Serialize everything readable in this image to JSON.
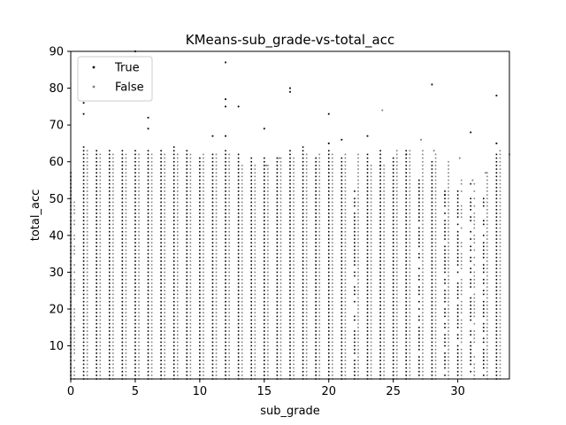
{
  "chart_data": {
    "type": "scatter",
    "title": "KMeans-sub_grade-vs-total_acc",
    "xlabel": "sub_grade",
    "ylabel": "total_acc",
    "xlim": [
      0,
      34
    ],
    "ylim": [
      1,
      90
    ],
    "xticks": [
      0,
      5,
      10,
      15,
      20,
      25,
      30
    ],
    "yticks": [
      10,
      20,
      30,
      40,
      50,
      60,
      70,
      80,
      90
    ],
    "grid": false,
    "legend_position": "top-left",
    "series": [
      {
        "name": "True",
        "color": "#000000",
        "column_maxima": [
          [
            0,
            57
          ],
          [
            1,
            64
          ],
          [
            2,
            63
          ],
          [
            3,
            63
          ],
          [
            4,
            63
          ],
          [
            5,
            63
          ],
          [
            6,
            63
          ],
          [
            7,
            63
          ],
          [
            8,
            64
          ],
          [
            9,
            63
          ],
          [
            10,
            61
          ],
          [
            11,
            62
          ],
          [
            12,
            63
          ],
          [
            13,
            62
          ],
          [
            14,
            61
          ],
          [
            15,
            61
          ],
          [
            16,
            61
          ],
          [
            17,
            63
          ],
          [
            18,
            64
          ],
          [
            19,
            61
          ],
          [
            20,
            63
          ],
          [
            21,
            61
          ],
          [
            22,
            52
          ],
          [
            23,
            62
          ],
          [
            24,
            63
          ],
          [
            25,
            61
          ],
          [
            26,
            63
          ],
          [
            27,
            55
          ],
          [
            28,
            60
          ],
          [
            29,
            52
          ],
          [
            30,
            52
          ],
          [
            31,
            54
          ],
          [
            32,
            50
          ],
          [
            33,
            62
          ]
        ],
        "outliers": [
          [
            1,
            76
          ],
          [
            1,
            73
          ],
          [
            5,
            90
          ],
          [
            6,
            72
          ],
          [
            6,
            69
          ],
          [
            12,
            87
          ],
          [
            12,
            77
          ],
          [
            12,
            75
          ],
          [
            12,
            67
          ],
          [
            11,
            67
          ],
          [
            13,
            75
          ],
          [
            15,
            69
          ],
          [
            17,
            80
          ],
          [
            17,
            79
          ],
          [
            20,
            73
          ],
          [
            20,
            65
          ],
          [
            21,
            66
          ],
          [
            23,
            67
          ],
          [
            28,
            81
          ],
          [
            31,
            68
          ],
          [
            33,
            78
          ],
          [
            33,
            65
          ],
          [
            26,
            62
          ],
          [
            24,
            59
          ],
          [
            29,
            51
          ]
        ]
      },
      {
        "name": "False",
        "color": "#808080",
        "column_maxima": [
          [
            0,
            50
          ],
          [
            1,
            63
          ],
          [
            2,
            62
          ],
          [
            3,
            62
          ],
          [
            4,
            62
          ],
          [
            5,
            62
          ],
          [
            6,
            62
          ],
          [
            7,
            62
          ],
          [
            8,
            62
          ],
          [
            9,
            62
          ],
          [
            10,
            62
          ],
          [
            11,
            62
          ],
          [
            12,
            62
          ],
          [
            13,
            59
          ],
          [
            14,
            59
          ],
          [
            15,
            59
          ],
          [
            16,
            61
          ],
          [
            17,
            61
          ],
          [
            18,
            62
          ],
          [
            19,
            62
          ],
          [
            20,
            62
          ],
          [
            21,
            62
          ],
          [
            22,
            62
          ],
          [
            23,
            59
          ],
          [
            24,
            59
          ],
          [
            25,
            63
          ],
          [
            26,
            63
          ],
          [
            27,
            63
          ],
          [
            28,
            62
          ],
          [
            29,
            60
          ],
          [
            30,
            55
          ],
          [
            31,
            55
          ],
          [
            32,
            57
          ],
          [
            33,
            63
          ]
        ],
        "outliers": [
          [
            24,
            74
          ],
          [
            27,
            66
          ],
          [
            28,
            63
          ],
          [
            30,
            61
          ],
          [
            32,
            57
          ],
          [
            15,
            59
          ],
          [
            16,
            61
          ],
          [
            31,
            55
          ],
          [
            34,
            62
          ]
        ]
      }
    ]
  }
}
